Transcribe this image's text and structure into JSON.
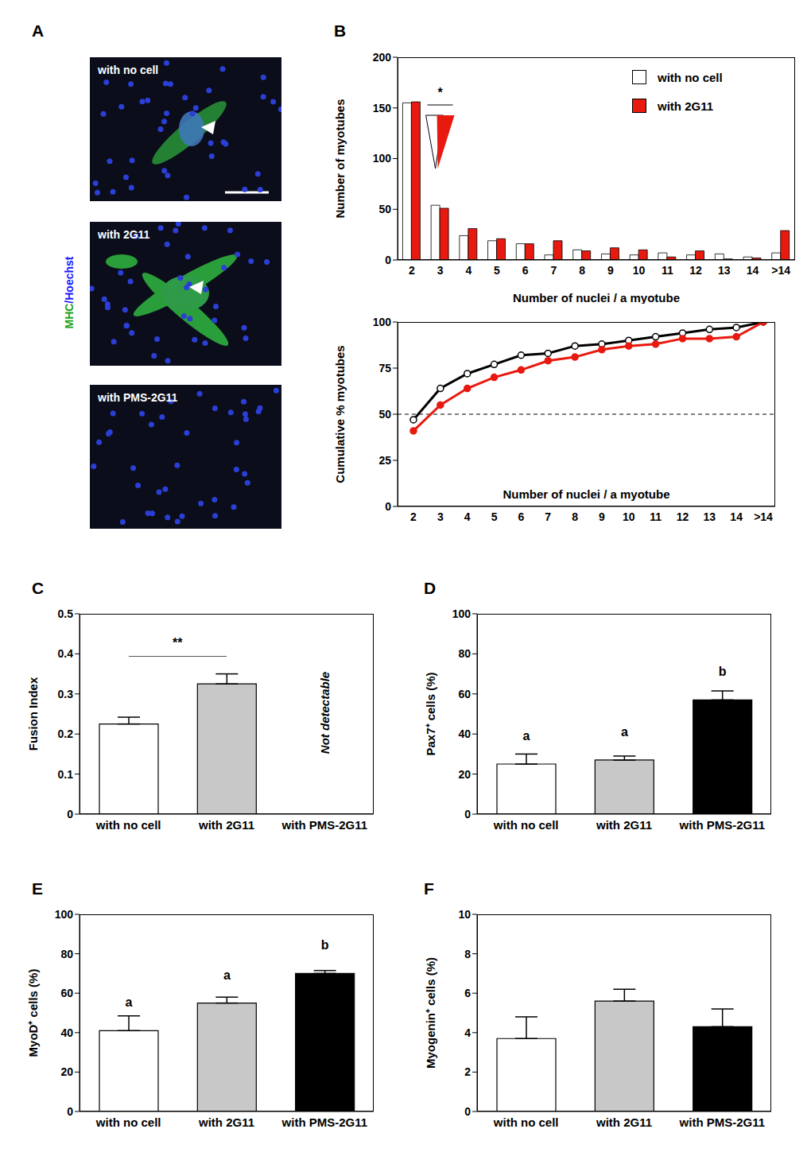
{
  "images": {
    "panel_label": "A",
    "tiles": [
      "with no cell",
      "with 2G11",
      "with PMS-2G11"
    ],
    "stain_label": [
      {
        "text": "MHC",
        "color": "#1aa31a"
      },
      {
        "text": "/Hoechst",
        "color": "#1a1aff"
      }
    ]
  },
  "chart_data": [
    {
      "panel_label": "B",
      "type": "bar",
      "categories": [
        "2",
        "3",
        "4",
        "5",
        "6",
        "7",
        "8",
        "9",
        "10",
        "11",
        "12",
        "13",
        "14",
        ">14"
      ],
      "series": [
        {
          "name": "with no cell",
          "color": "#ffffff",
          "values": [
            155,
            54,
            24,
            19,
            16,
            5,
            10,
            6,
            5,
            7,
            5,
            6,
            3,
            7
          ]
        },
        {
          "name": "with 2G11",
          "color": "#e8190f",
          "values": [
            156,
            51,
            31,
            21,
            16,
            19,
            9,
            12,
            10,
            3,
            9,
            1,
            2,
            29
          ]
        }
      ],
      "x_label": "Number of nuclei / a myotube",
      "y_label": "Number of myotubes",
      "ylim": [
        0,
        200
      ],
      "yticks": [
        0,
        50,
        100,
        150,
        200
      ],
      "legend": "upper right",
      "significance": {
        "label": "*",
        "category": "3"
      }
    },
    {
      "type": "line",
      "categories": [
        "2",
        "3",
        "4",
        "5",
        "6",
        "7",
        "8",
        "9",
        "10",
        "11",
        "12",
        "13",
        "14",
        ">14"
      ],
      "series": [
        {
          "name": "with no cell",
          "color": "#000000",
          "marker": "circle",
          "values": [
            47,
            64,
            72,
            77,
            82,
            83,
            87,
            88,
            90,
            92,
            94,
            96,
            97,
            100
          ]
        },
        {
          "name": "with 2G11",
          "color": "#e8190f",
          "marker": "circle",
          "values": [
            41,
            55,
            64,
            70,
            74,
            79,
            81,
            85,
            87,
            88,
            91,
            91,
            92,
            100
          ]
        }
      ],
      "x_label": "Number of nuclei / a myotube",
      "y_label": "Cumulative % myotubes",
      "ylim": [
        0,
        100
      ],
      "yticks": [
        0,
        25,
        50,
        75,
        100
      ],
      "reference_line": 50
    },
    {
      "panel_label": "C",
      "type": "bar",
      "categories": [
        "with no cell",
        "with 2G11",
        "with PMS-2G11"
      ],
      "values": [
        0.225,
        0.325,
        null
      ],
      "errors": [
        0.017,
        0.025,
        null
      ],
      "colors": [
        "#ffffff",
        "#c8c8c8",
        "#000000"
      ],
      "y_label": "Fusion Index",
      "ylim": [
        0,
        0.5
      ],
      "yticks": [
        0,
        0.1,
        0.2,
        0.3,
        0.4,
        0.5
      ],
      "annotations": [
        null,
        null,
        "Not detectable"
      ],
      "significance": {
        "label": "**",
        "between": [
          "with no cell",
          "with 2G11"
        ]
      }
    },
    {
      "panel_label": "D",
      "type": "bar",
      "categories": [
        "with no cell",
        "with 2G11",
        "with PMS-2G11"
      ],
      "values": [
        25,
        27,
        57
      ],
      "errors": [
        5,
        2,
        4.5
      ],
      "colors": [
        "#ffffff",
        "#c8c8c8",
        "#000000"
      ],
      "y_label": "Pax7⁺ cells (%)",
      "ylim": [
        0,
        100
      ],
      "yticks": [
        0,
        20,
        40,
        60,
        80,
        100
      ],
      "annotations": [
        "a",
        "a",
        "b"
      ]
    },
    {
      "panel_label": "E",
      "type": "bar",
      "categories": [
        "with no cell",
        "with 2G11",
        "with PMS-2G11"
      ],
      "values": [
        41,
        55,
        70
      ],
      "errors": [
        7.5,
        3,
        1.5
      ],
      "colors": [
        "#ffffff",
        "#c8c8c8",
        "#000000"
      ],
      "y_label": "MyoD⁺ cells (%)",
      "ylim": [
        0,
        100
      ],
      "yticks": [
        0,
        20,
        40,
        60,
        80,
        100
      ],
      "annotations": [
        "a",
        "a",
        "b"
      ]
    },
    {
      "panel_label": "F",
      "type": "bar",
      "categories": [
        "with no cell",
        "with 2G11",
        "with PMS-2G11"
      ],
      "values": [
        3.7,
        5.6,
        4.3
      ],
      "errors": [
        1.1,
        0.6,
        0.9
      ],
      "colors": [
        "#ffffff",
        "#c8c8c8",
        "#000000"
      ],
      "y_label": "Myogenin⁺ cells (%)",
      "ylim": [
        0,
        10
      ],
      "yticks": [
        0,
        2,
        4,
        6,
        8,
        10
      ]
    }
  ]
}
